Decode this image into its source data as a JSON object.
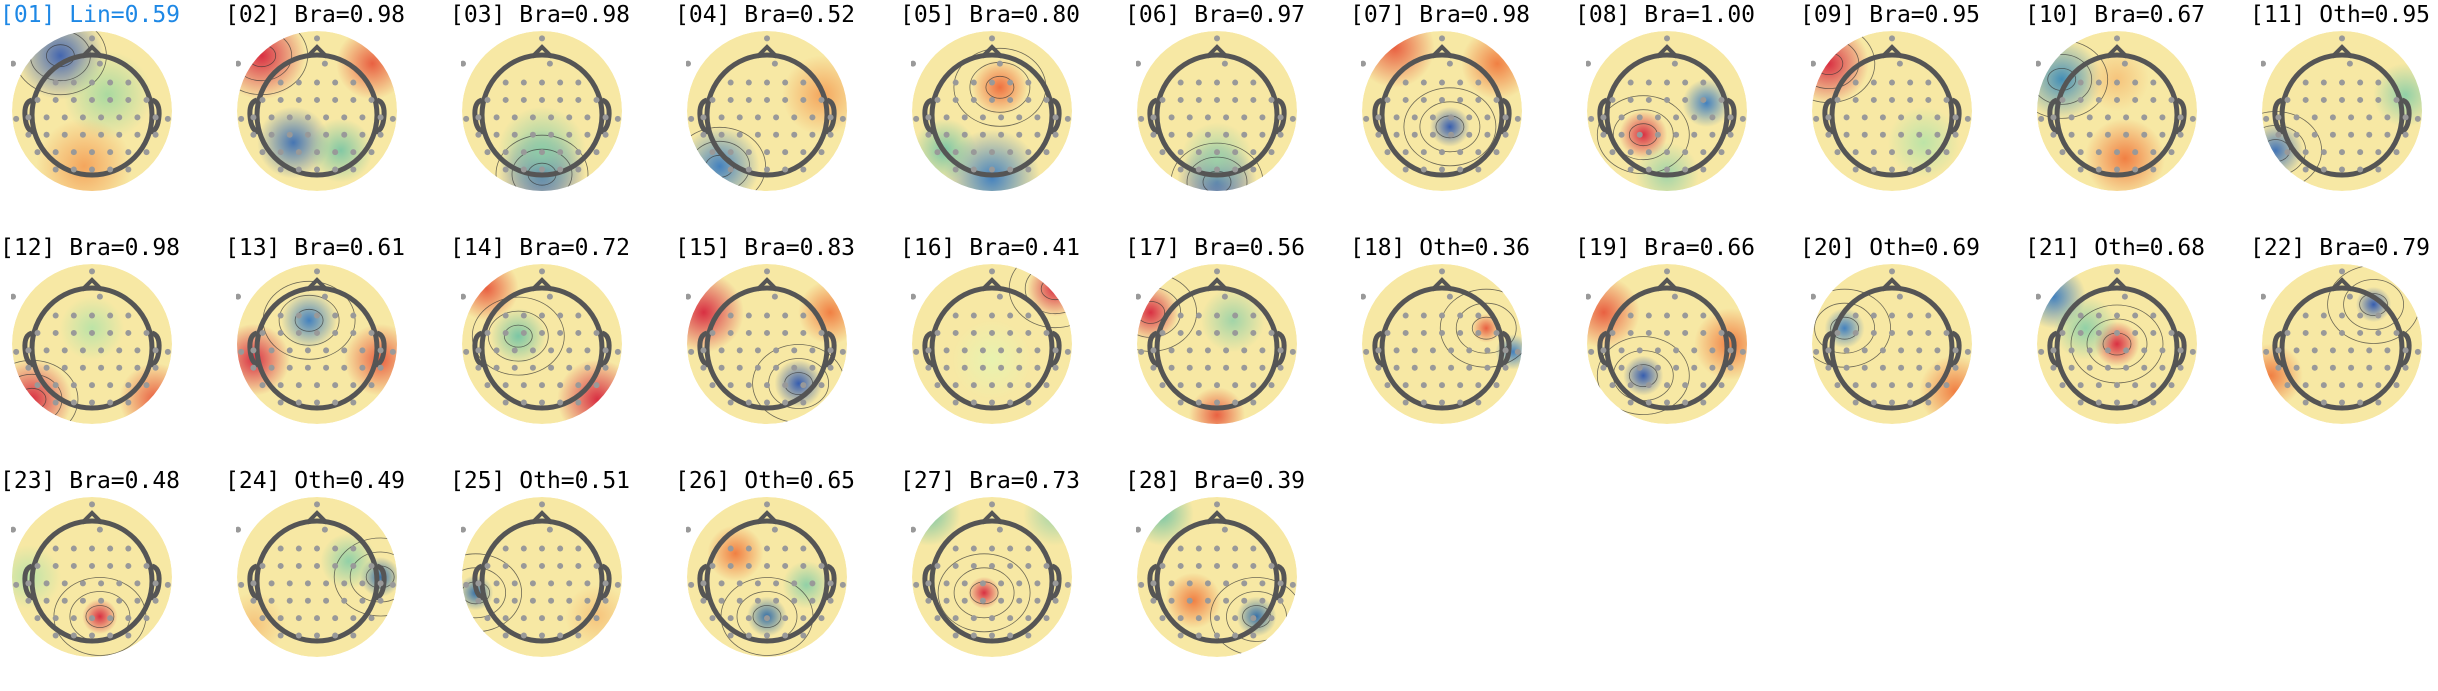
{
  "components": [
    {
      "id": "[01]",
      "label": "Lin=0.59",
      "selected": true
    },
    {
      "id": "[02]",
      "label": "Bra=0.98",
      "selected": false
    },
    {
      "id": "[03]",
      "label": "Bra=0.98",
      "selected": false
    },
    {
      "id": "[04]",
      "label": "Bra=0.52",
      "selected": false
    },
    {
      "id": "[05]",
      "label": "Bra=0.80",
      "selected": false
    },
    {
      "id": "[06]",
      "label": "Bra=0.97",
      "selected": false
    },
    {
      "id": "[07]",
      "label": "Bra=0.98",
      "selected": false
    },
    {
      "id": "[08]",
      "label": "Bra=1.00",
      "selected": false
    },
    {
      "id": "[09]",
      "label": "Bra=0.95",
      "selected": false
    },
    {
      "id": "[10]",
      "label": "Bra=0.67",
      "selected": false
    },
    {
      "id": "[11]",
      "label": "Oth=0.95",
      "selected": false
    },
    {
      "id": "[12]",
      "label": "Bra=0.98",
      "selected": false
    },
    {
      "id": "[13]",
      "label": "Bra=0.61",
      "selected": false
    },
    {
      "id": "[14]",
      "label": "Bra=0.72",
      "selected": false
    },
    {
      "id": "[15]",
      "label": "Bra=0.83",
      "selected": false
    },
    {
      "id": "[16]",
      "label": "Bra=0.41",
      "selected": false
    },
    {
      "id": "[17]",
      "label": "Bra=0.56",
      "selected": false
    },
    {
      "id": "[18]",
      "label": "Oth=0.36",
      "selected": false
    },
    {
      "id": "[19]",
      "label": "Bra=0.66",
      "selected": false
    },
    {
      "id": "[20]",
      "label": "Oth=0.69",
      "selected": false
    },
    {
      "id": "[21]",
      "label": "Oth=0.68",
      "selected": false
    },
    {
      "id": "[22]",
      "label": "Bra=0.79",
      "selected": false
    },
    {
      "id": "[23]",
      "label": "Bra=0.48",
      "selected": false
    },
    {
      "id": "[24]",
      "label": "Oth=0.49",
      "selected": false
    },
    {
      "id": "[25]",
      "label": "Oth=0.51",
      "selected": false
    },
    {
      "id": "[26]",
      "label": "Oth=0.65",
      "selected": false
    },
    {
      "id": "[27]",
      "label": "Bra=0.73",
      "selected": false
    },
    {
      "id": "[28]",
      "label": "Bra=0.39",
      "selected": false
    }
  ],
  "colors": {
    "selected_label": "#1e88e5",
    "label": "#000000",
    "head_outline": "#555555",
    "sensor": "#999999"
  }
}
